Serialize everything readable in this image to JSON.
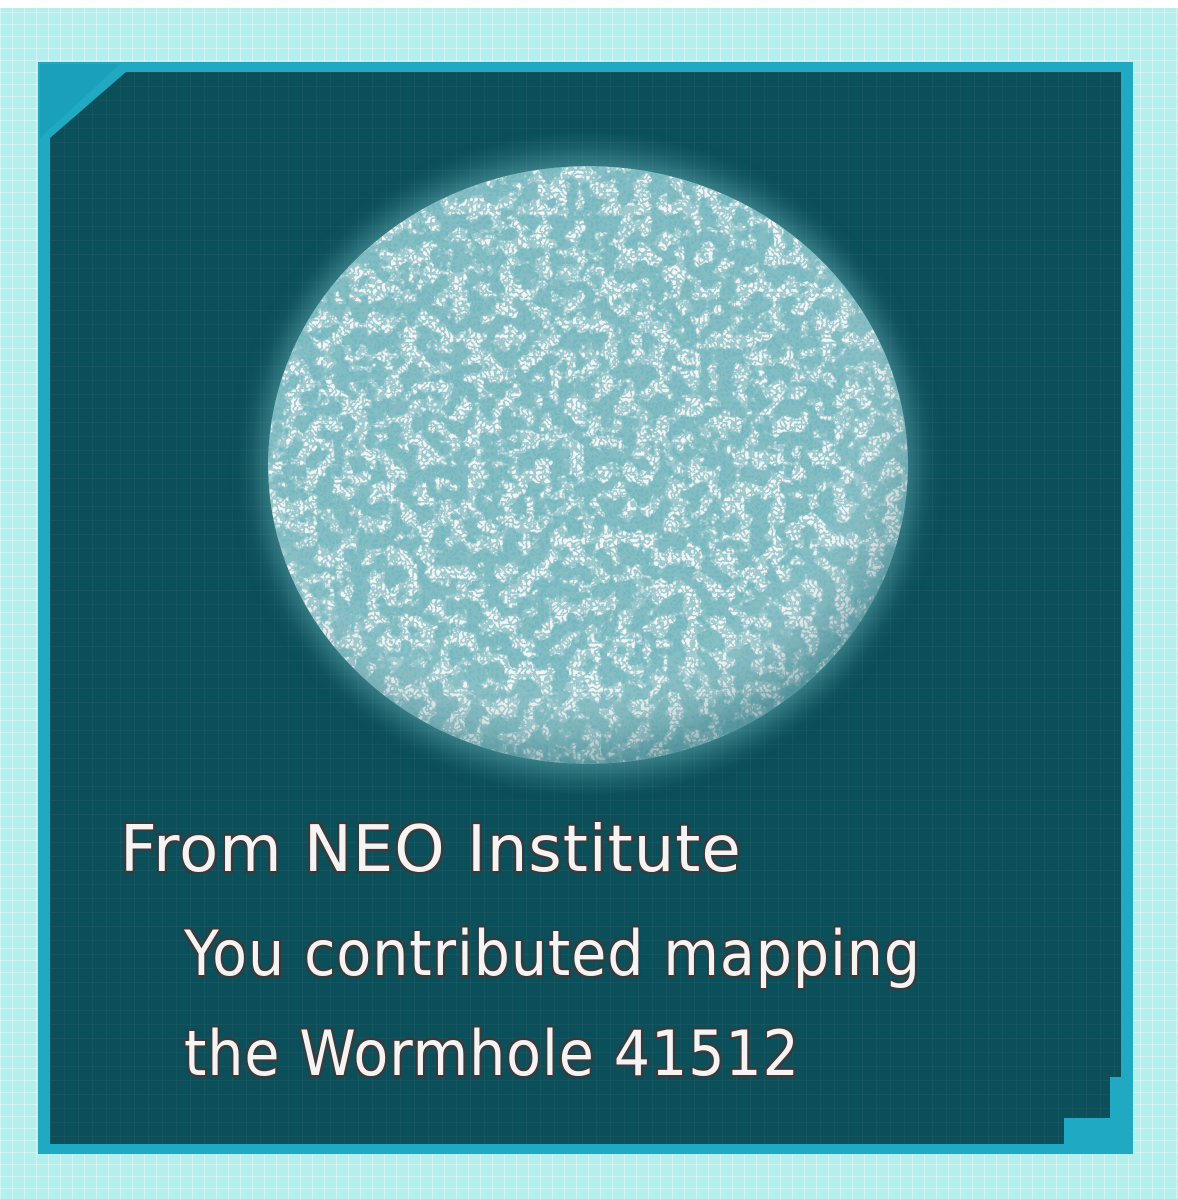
{
  "notification": {
    "title": "From NEO Institute",
    "line1": "You contributed mapping",
    "line2": "the Wormhole 41512"
  },
  "planet": {
    "icon": "planet-icon",
    "surface_color": "#f2f5f5",
    "spot_color": "#2e7a84"
  },
  "colors": {
    "background": "#b4efee",
    "frame": "#20a9c2",
    "panel": "#0b4f5a",
    "text": "#f4f4f4",
    "text_outline": "#3a3a3a"
  }
}
